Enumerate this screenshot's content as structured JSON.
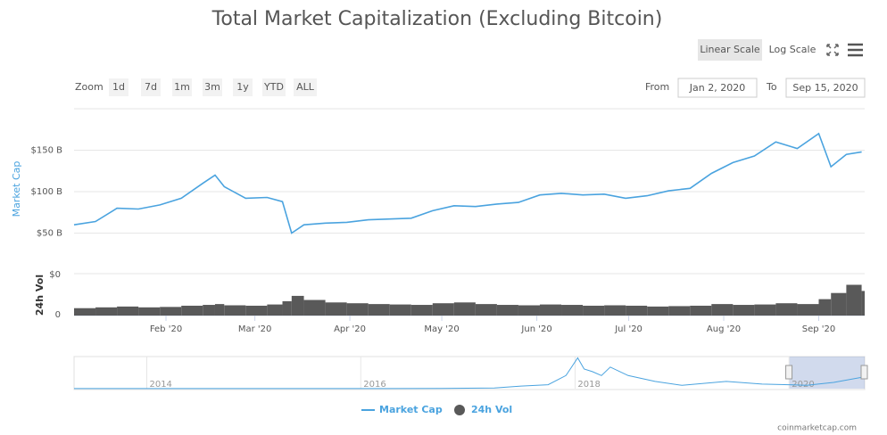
{
  "toolbar": {
    "linear_scale": "Linear Scale",
    "log_scale": "Log Scale",
    "zoom_label": "Zoom",
    "zoom_buttons": [
      "1d",
      "7d",
      "1m",
      "3m",
      "1y",
      "YTD",
      "ALL"
    ],
    "from_label": "From",
    "from_date": "Jan 2, 2020",
    "to_label": "To",
    "to_date": "Sep 15, 2020"
  },
  "chart_data": {
    "type": "line",
    "title": "Total Market Capitalization (Excluding Bitcoin)",
    "x": [
      "2020-01-02",
      "2020-01-09",
      "2020-01-16",
      "2020-01-23",
      "2020-01-30",
      "2020-02-06",
      "2020-02-13",
      "2020-02-17",
      "2020-02-20",
      "2020-02-27",
      "2020-03-05",
      "2020-03-10",
      "2020-03-13",
      "2020-03-17",
      "2020-03-24",
      "2020-03-31",
      "2020-04-07",
      "2020-04-14",
      "2020-04-21",
      "2020-04-28",
      "2020-05-05",
      "2020-05-12",
      "2020-05-19",
      "2020-05-26",
      "2020-06-02",
      "2020-06-09",
      "2020-06-16",
      "2020-06-23",
      "2020-06-30",
      "2020-07-07",
      "2020-07-14",
      "2020-07-21",
      "2020-07-28",
      "2020-08-04",
      "2020-08-11",
      "2020-08-18",
      "2020-08-25",
      "2020-09-01",
      "2020-09-05",
      "2020-09-10",
      "2020-09-15"
    ],
    "series": [
      {
        "name": "Market Cap",
        "color": "#4aa3df",
        "values": [
          60,
          64,
          80,
          79,
          84,
          92,
          110,
          120,
          106,
          92,
          93,
          88,
          50,
          60,
          62,
          63,
          66,
          67,
          68,
          77,
          83,
          82,
          85,
          87,
          96,
          98,
          96,
          97,
          92,
          95,
          101,
          104,
          122,
          135,
          143,
          160,
          152,
          170,
          130,
          145,
          148
        ]
      },
      {
        "name": "24h Vol",
        "color": "#595959",
        "axis": "y2",
        "values": [
          18,
          20,
          22,
          20,
          21,
          24,
          26,
          28,
          25,
          24,
          27,
          35,
          48,
          38,
          32,
          30,
          28,
          27,
          26,
          30,
          32,
          28,
          26,
          25,
          27,
          26,
          24,
          25,
          24,
          22,
          23,
          24,
          28,
          26,
          27,
          30,
          28,
          40,
          55,
          75,
          60
        ]
      }
    ],
    "xlim": [
      "2020-01-02",
      "2020-09-16"
    ],
    "xticks": [
      {
        "value": "2020-02-01",
        "label": "Feb '20"
      },
      {
        "value": "2020-03-01",
        "label": "Mar '20"
      },
      {
        "value": "2020-04-01",
        "label": "Apr '20"
      },
      {
        "value": "2020-05-01",
        "label": "May '20"
      },
      {
        "value": "2020-06-01",
        "label": "Jun '20"
      },
      {
        "value": "2020-07-01",
        "label": "Jul '20"
      },
      {
        "value": "2020-08-01",
        "label": "Aug '20"
      },
      {
        "value": "2020-09-01",
        "label": "Sep '20"
      }
    ],
    "ylim": [
      10,
      200
    ],
    "yticks": [
      {
        "value": 50,
        "label": "$50 B"
      },
      {
        "value": 100,
        "label": "$100 B"
      },
      {
        "value": 150,
        "label": "$150 B"
      }
    ],
    "y_axis_label": "Market Cap",
    "y2lim": [
      0,
      100
    ],
    "y2ticks": [
      0
    ],
    "y2_top_label": "$0",
    "y2_axis_label": "24h Vol",
    "grid": true,
    "navigator": {
      "x": [
        "2013-04-28",
        "2013-10",
        "2014-04",
        "2014-10",
        "2015-04",
        "2015-10",
        "2016-04",
        "2016-10",
        "2017-04",
        "2017-07",
        "2017-10",
        "2017-12",
        "2018-01-10",
        "2018-02",
        "2018-03",
        "2018-04",
        "2018-05",
        "2018-07",
        "2018-10",
        "2019-01",
        "2019-06",
        "2019-10",
        "2020-01",
        "2020-03",
        "2020-06",
        "2020-09-01",
        "2020-09-15"
      ],
      "values": [
        1,
        2,
        1,
        1,
        1,
        1,
        2,
        3,
        10,
        40,
        60,
        200,
        470,
        300,
        260,
        200,
        330,
        200,
        110,
        50,
        110,
        70,
        60,
        50,
        95,
        170,
        148
      ],
      "xlim": [
        "2013-04-28",
        "2020-09-15"
      ],
      "ylim": [
        0,
        490
      ],
      "xticks": [
        {
          "value": "2014-01-01",
          "label": "2014"
        },
        {
          "value": "2016-01-01",
          "label": "2016"
        },
        {
          "value": "2018-01-01",
          "label": "2018"
        },
        {
          "value": "2020-01-01",
          "label": "2020"
        }
      ]
    }
  },
  "credit": "coinmarketcap.com"
}
